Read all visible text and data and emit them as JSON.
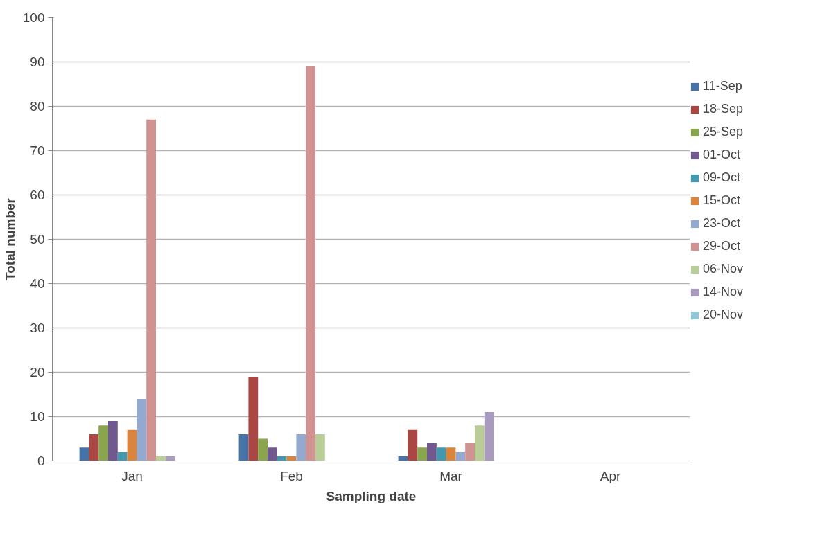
{
  "chart_data": {
    "type": "bar",
    "xlabel": "Sampling date",
    "ylabel": "Total number",
    "categories": [
      "Jan",
      "Feb",
      "Mar",
      "Apr"
    ],
    "series": [
      {
        "name": "11-Sep",
        "color": "#4572a7",
        "values": [
          3,
          6,
          1,
          0
        ]
      },
      {
        "name": "18-Sep",
        "color": "#aa4643",
        "values": [
          6,
          19,
          7,
          0
        ]
      },
      {
        "name": "25-Sep",
        "color": "#89a54e",
        "values": [
          8,
          5,
          3,
          0
        ]
      },
      {
        "name": "01-Oct",
        "color": "#71588f",
        "values": [
          9,
          3,
          4,
          0
        ]
      },
      {
        "name": "09-Oct",
        "color": "#4198af",
        "values": [
          2,
          1,
          3,
          0
        ]
      },
      {
        "name": "15-Oct",
        "color": "#db843d",
        "values": [
          7,
          1,
          3,
          0
        ]
      },
      {
        "name": "23-Oct",
        "color": "#93a9cf",
        "values": [
          14,
          6,
          2,
          0
        ]
      },
      {
        "name": "29-Oct",
        "color": "#d19392",
        "values": [
          77,
          89,
          4,
          0
        ]
      },
      {
        "name": "06-Nov",
        "color": "#b9cd96",
        "values": [
          1,
          6,
          8,
          0
        ]
      },
      {
        "name": "14-Nov",
        "color": "#a99bbd",
        "values": [
          1,
          0,
          11,
          0
        ]
      },
      {
        "name": "20-Nov",
        "color": "#92c5d6",
        "values": [
          0,
          0,
          0,
          0
        ]
      }
    ],
    "ylim": [
      0,
      100
    ],
    "yticks": [
      0,
      10,
      20,
      30,
      40,
      50,
      60,
      70,
      80,
      90,
      100
    ],
    "grid": "y",
    "legend": "right"
  }
}
